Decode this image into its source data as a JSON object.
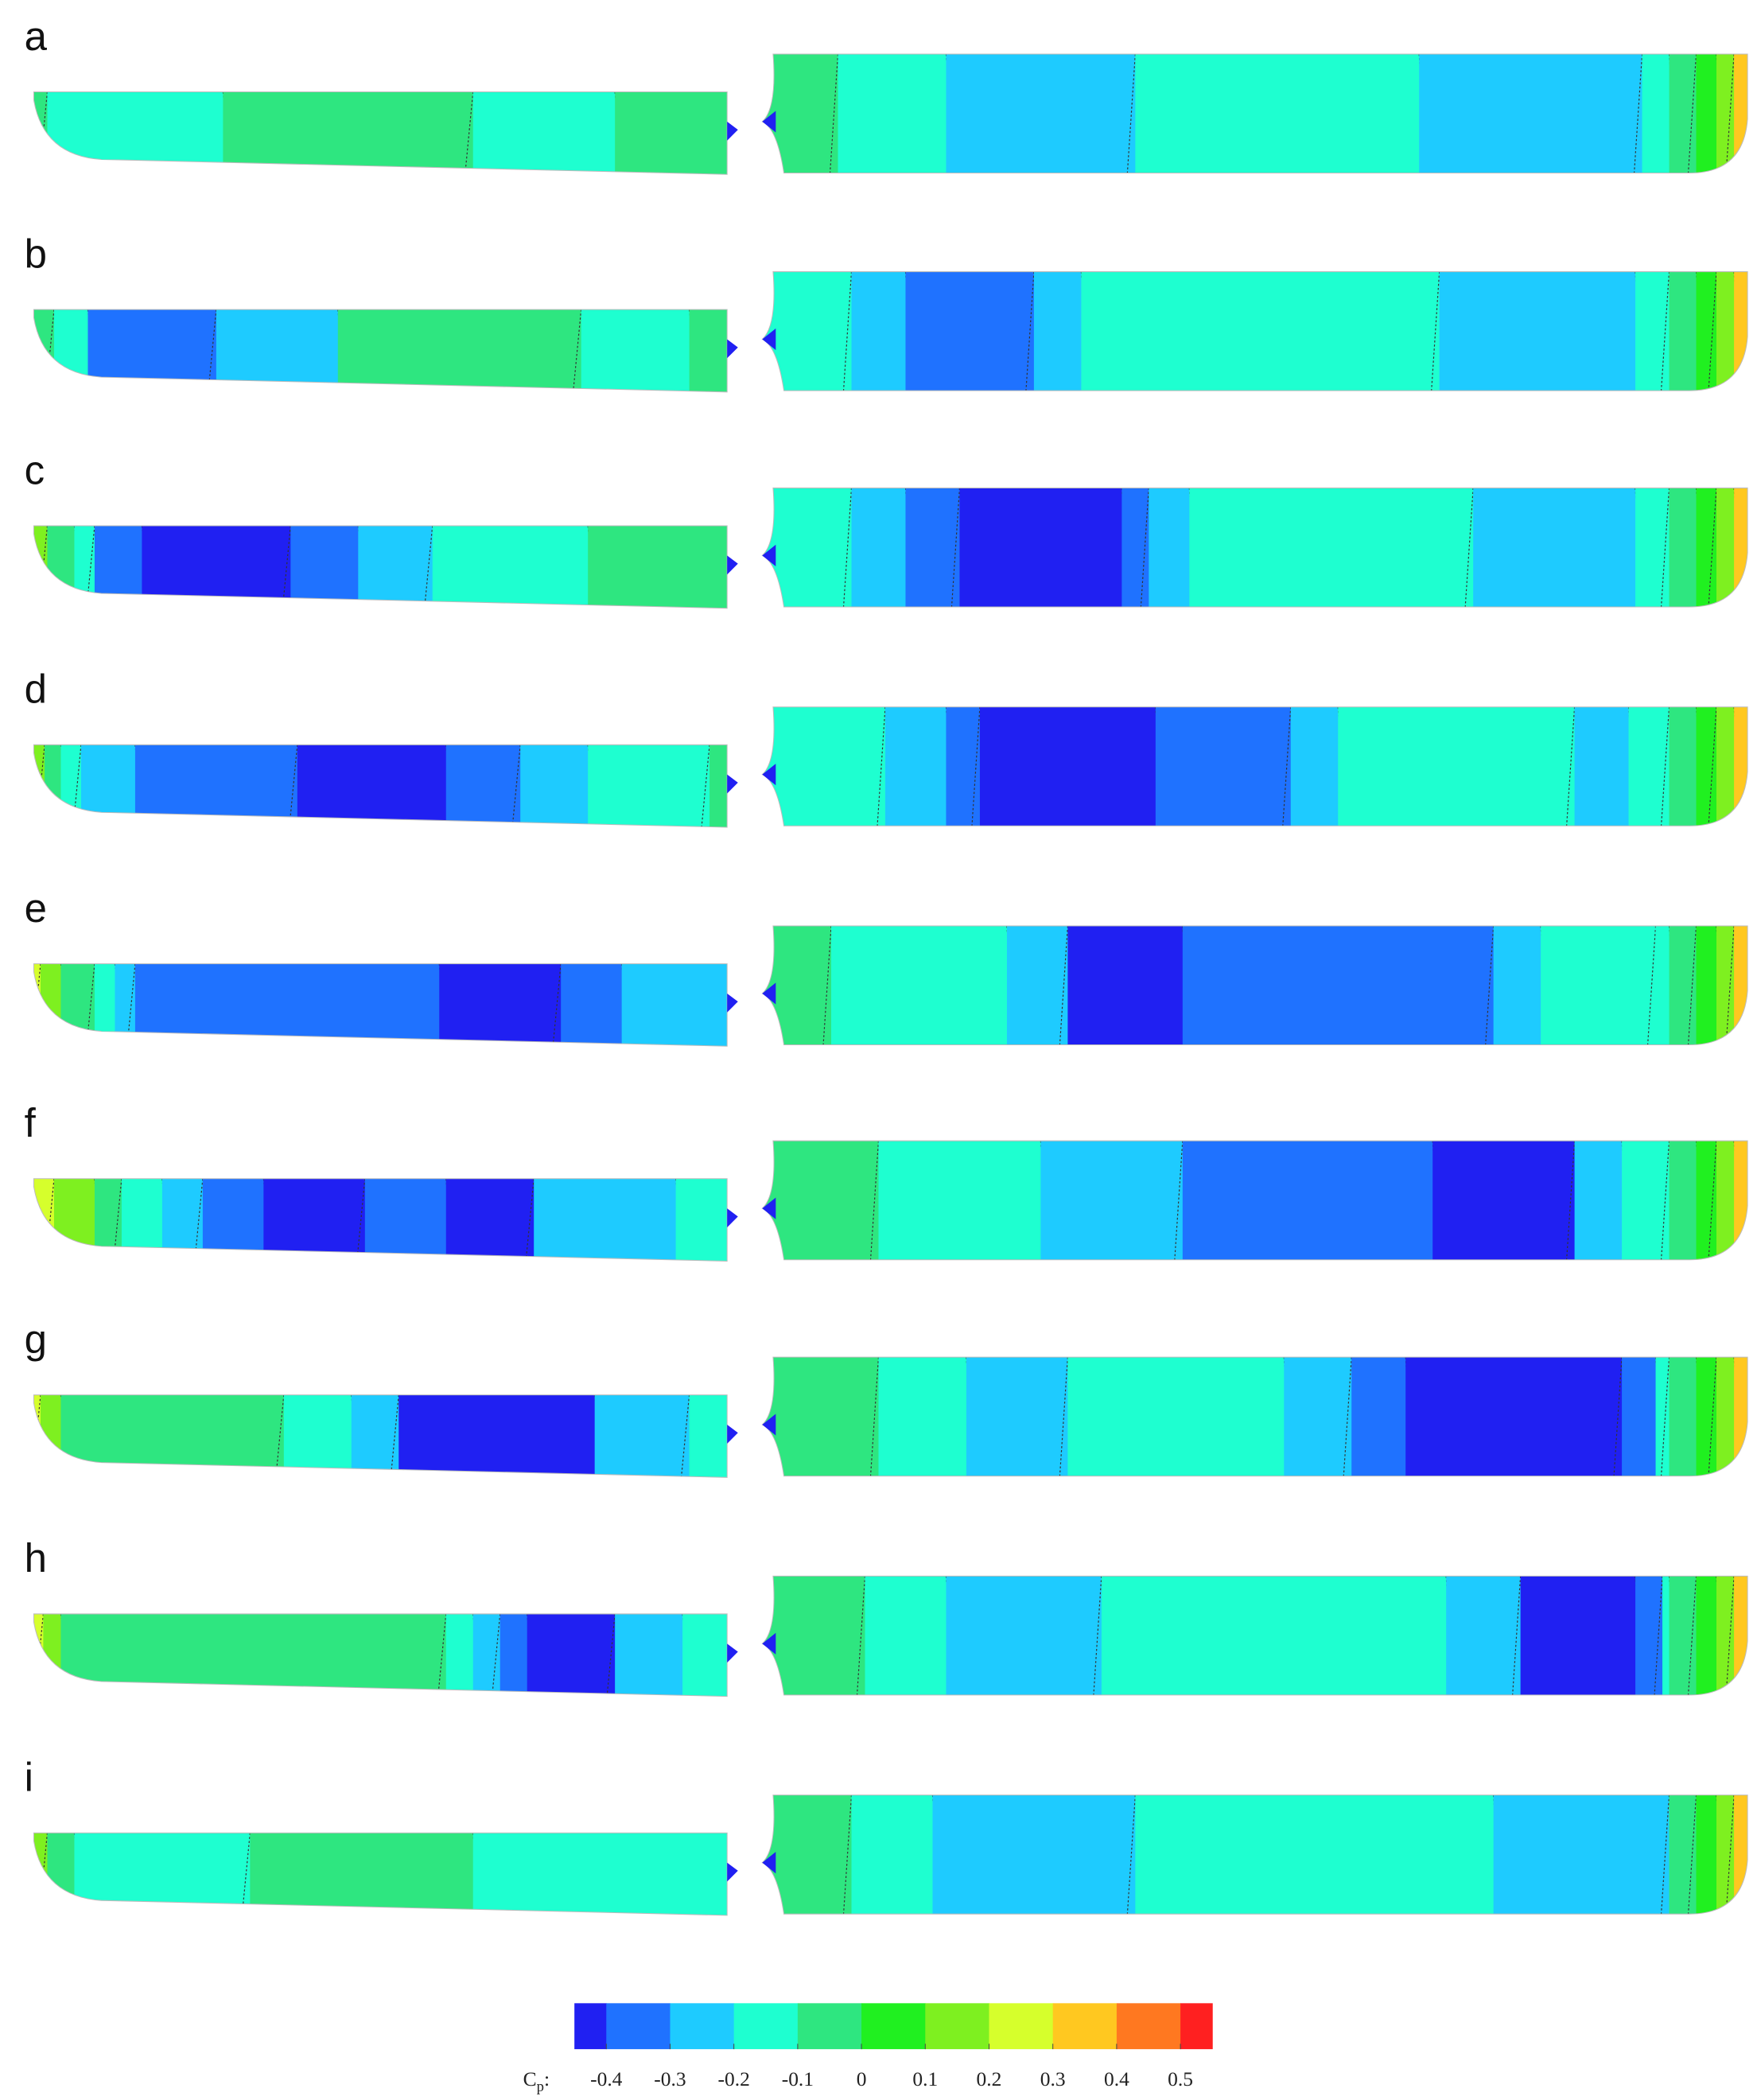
{
  "panels": [
    {
      "label": "a"
    },
    {
      "label": "b"
    },
    {
      "label": "c"
    },
    {
      "label": "d"
    },
    {
      "label": "e"
    },
    {
      "label": "f"
    },
    {
      "label": "g"
    },
    {
      "label": "h"
    },
    {
      "label": "i"
    }
  ],
  "colorbar": {
    "label": {
      "text": "C",
      "subscript": "p",
      "suffix": ":"
    },
    "ticks": [
      -0.4,
      -0.3,
      -0.2,
      -0.1,
      0,
      0.1,
      0.2,
      0.3,
      0.4,
      0.5
    ],
    "colors": [
      "#2020f2",
      "#1f72ff",
      "#1ecbff",
      "#1effd0",
      "#2ee680",
      "#20f020",
      "#7ef020",
      "#d6ff2c",
      "#ffc820",
      "#ff7820",
      "#ff2020"
    ]
  }
}
